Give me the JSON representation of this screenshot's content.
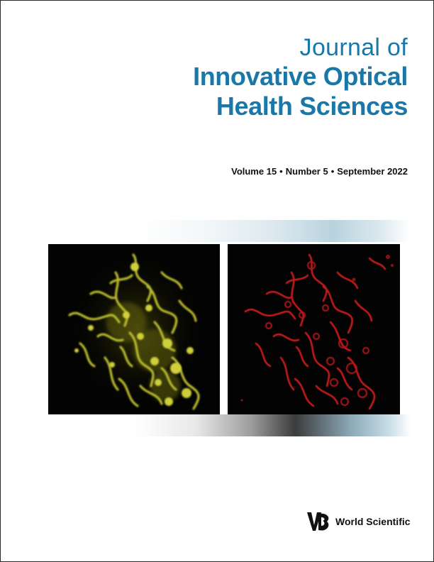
{
  "journal": {
    "line1": "Journal of",
    "line2": "Innovative Optical",
    "line3": "Health Sciences"
  },
  "issue": {
    "volume": "Volume 15",
    "number": "Number 5",
    "date": "September 2022",
    "separator": "•"
  },
  "images": [
    {
      "name": "yellow-fluorescence-micrograph",
      "fluorescence_color": "#c8c830"
    },
    {
      "name": "red-fluorescence-micrograph",
      "fluorescence_color": "#c41a1e"
    }
  ],
  "publisher": {
    "name": "World Scientific",
    "logo_icon": "world-scientific-logo-icon"
  },
  "colors": {
    "title": "#1a78a8",
    "text": "#111111",
    "image_background": "#030303"
  }
}
